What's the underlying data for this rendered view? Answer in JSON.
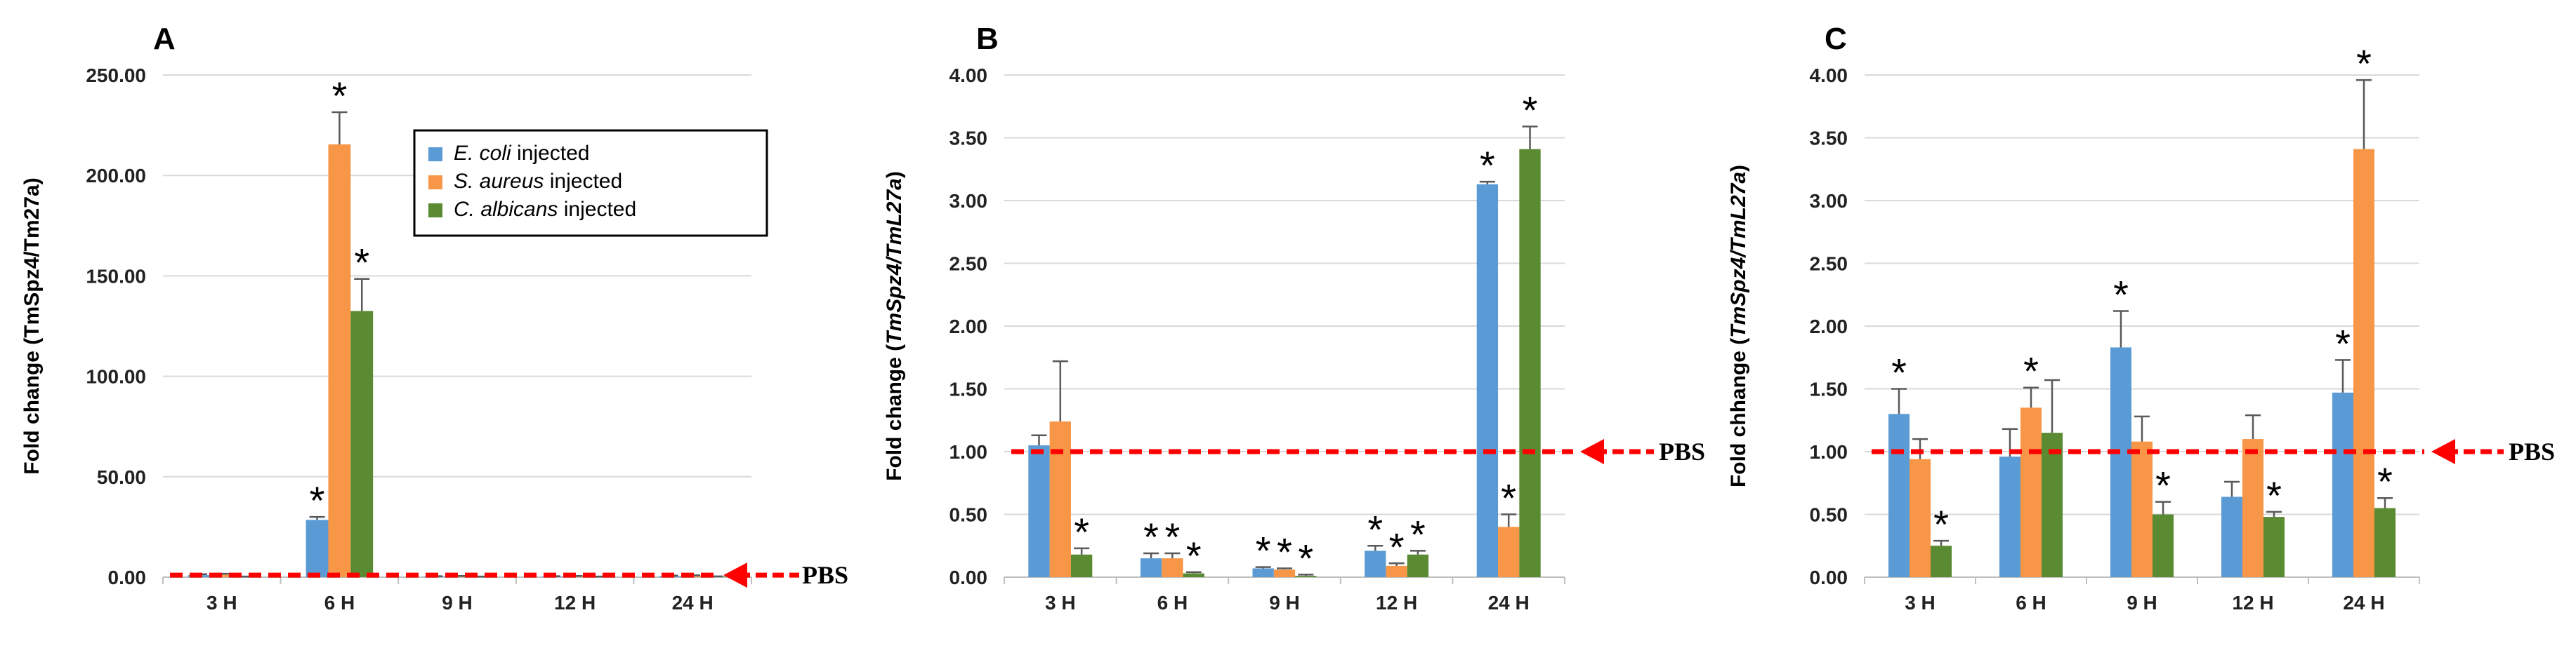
{
  "colors": {
    "e_coli": "#5b9bd5",
    "s_aureus": "#f79646",
    "c_albicans": "#5a8a32",
    "pbs_line": "#ff0000",
    "grid": "#d9d9d9",
    "error_bar": "#595959"
  },
  "legend": {
    "items": [
      {
        "italic": "E. coli",
        "rest": " injected"
      },
      {
        "italic": "S. aureus",
        "rest": " injected"
      },
      {
        "italic": "C. albicans",
        "rest": " injected"
      }
    ]
  },
  "chart_data": [
    {
      "type": "bar",
      "panel": "A",
      "ylabel": "Fold change (TmSpz4/Tm27a)",
      "ylim": [
        0,
        250
      ],
      "yticks": [
        "0.00",
        "50.00",
        "100.00",
        "150.00",
        "200.00",
        "250.00"
      ],
      "categories": [
        "3 H",
        "6 H",
        "9 H",
        "12 H",
        "24 H"
      ],
      "series": [
        {
          "name": "E. coli injected",
          "values": [
            1.0,
            28.5,
            0.3,
            0.3,
            0.5
          ],
          "errors": [
            0.5,
            1.5,
            0.2,
            0.2,
            0.3
          ],
          "stars": [
            false,
            true,
            false,
            false,
            false
          ]
        },
        {
          "name": "S. aureus injected",
          "values": [
            1.2,
            215.5,
            0.4,
            0.4,
            0.6
          ],
          "errors": [
            0.5,
            16,
            0.2,
            0.2,
            0.3
          ],
          "stars": [
            false,
            true,
            false,
            false,
            false
          ]
        },
        {
          "name": "C. albicans injected",
          "values": [
            0.2,
            132.5,
            0.2,
            0.2,
            0.3
          ],
          "errors": [
            0.1,
            16,
            0.1,
            0.1,
            0.1
          ],
          "stars": [
            false,
            true,
            false,
            false,
            false
          ]
        }
      ],
      "pbs": {
        "value": 1,
        "label": "PBS"
      },
      "legend_position": "top-right"
    },
    {
      "type": "bar",
      "panel": "B",
      "ylabel": "Fold change (TmSpz4/TmL27a)",
      "ylabel_parts": [
        "Fold change (",
        "TmSpz4/TmL27a",
        ")"
      ],
      "ylim": [
        0,
        4
      ],
      "yticks": [
        "0.00",
        "0.50",
        "1.00",
        "1.50",
        "2.00",
        "2.50",
        "3.00",
        "3.50",
        "4.00"
      ],
      "categories": [
        "3 H",
        "6 H",
        "9 H",
        "12 H",
        "24 H"
      ],
      "series": [
        {
          "name": "E. coli injected",
          "values": [
            1.05,
            0.15,
            0.07,
            0.21,
            3.13
          ],
          "errors": [
            0.08,
            0.04,
            0.01,
            0.04,
            0.02
          ],
          "stars": [
            false,
            true,
            true,
            true,
            true
          ]
        },
        {
          "name": "S. aureus injected",
          "values": [
            1.24,
            0.15,
            0.06,
            0.09,
            0.4
          ],
          "errors": [
            0.48,
            0.04,
            0.01,
            0.02,
            0.1
          ],
          "stars": [
            false,
            true,
            true,
            true,
            true
          ]
        },
        {
          "name": "C. albicans injected",
          "values": [
            0.18,
            0.03,
            0.01,
            0.18,
            3.41
          ],
          "errors": [
            0.05,
            0.01,
            0.01,
            0.03,
            0.18
          ],
          "stars": [
            true,
            true,
            true,
            true,
            true
          ]
        }
      ],
      "pbs": {
        "value": 1,
        "label": "PBS"
      }
    },
    {
      "type": "bar",
      "panel": "C",
      "ylabel": "Fold chhange (TmSpz4/TmL27a)",
      "ylabel_parts": [
        "Fold chhange (",
        "TmSpz4/TmL27a",
        ")"
      ],
      "ylim": [
        0,
        4
      ],
      "yticks": [
        "0.00",
        "0.50",
        "1.00",
        "1.50",
        "2.00",
        "2.50",
        "3.00",
        "3.50",
        "4.00"
      ],
      "categories": [
        "3 H",
        "6 H",
        "9 H",
        "12 H",
        "24 H"
      ],
      "series": [
        {
          "name": "E. coli injected",
          "values": [
            1.3,
            0.96,
            1.83,
            0.64,
            1.47
          ],
          "errors": [
            0.2,
            0.22,
            0.29,
            0.12,
            0.26
          ],
          "stars": [
            true,
            false,
            true,
            false,
            true
          ]
        },
        {
          "name": "S. aureus injected",
          "values": [
            0.94,
            1.35,
            1.08,
            1.1,
            3.41
          ],
          "errors": [
            0.16,
            0.16,
            0.2,
            0.19,
            0.55
          ],
          "stars": [
            false,
            true,
            false,
            false,
            true
          ]
        },
        {
          "name": "C. albicans injected",
          "values": [
            0.25,
            1.15,
            0.5,
            0.48,
            0.55
          ],
          "errors": [
            0.04,
            0.42,
            0.1,
            0.04,
            0.08
          ],
          "stars": [
            true,
            false,
            true,
            true,
            true
          ]
        }
      ],
      "pbs": {
        "value": 1,
        "label": "PBS"
      }
    }
  ]
}
